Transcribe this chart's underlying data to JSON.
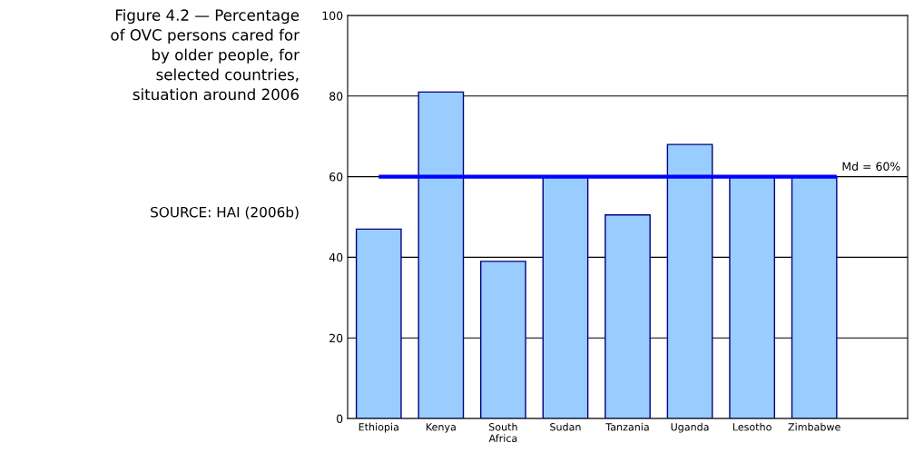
{
  "chart_data": {
    "type": "bar",
    "title": "Figure 4.2 — Percentage\nof OVC persons cared for\nby older people, for\nselected countries,\nsituation around 2006",
    "annotations": [
      "SOURCE: HAI (2006b)"
    ],
    "categories": [
      "Ethiopia",
      "Kenya",
      "South\nAfrica",
      "Sudan",
      "Tanzania",
      "Uganda",
      "Lesotho",
      "Zimbabwe"
    ],
    "values": [
      47,
      81,
      39,
      60,
      50.5,
      68,
      60,
      60
    ],
    "color": "#99ccff",
    "ylim": [
      0,
      100
    ],
    "yticks": [
      0,
      20,
      40,
      60,
      80,
      100
    ],
    "grid": "y",
    "ref_lines": [
      {
        "axis": "y",
        "value": 60,
        "label": "Md = 60%",
        "color": "#0000ff"
      }
    ]
  }
}
